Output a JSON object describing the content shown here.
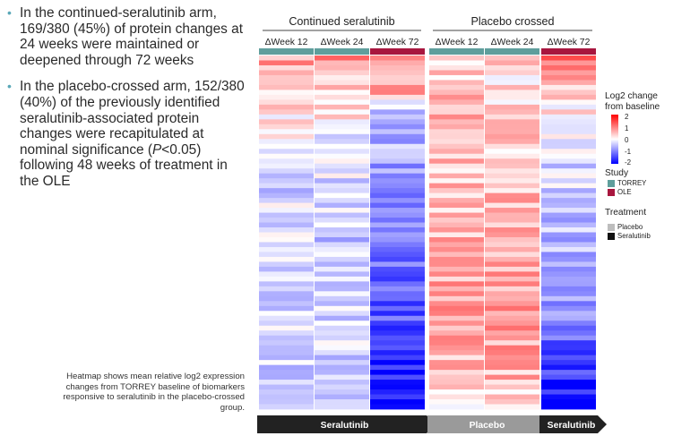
{
  "bullets": [
    {
      "pre": "In the continued-seralutinib arm, 169/380 (45%) of protein changes at 24 weeks were maintained or deepened through 72 weeks",
      "p": "",
      "post": ""
    },
    {
      "pre": "In the placebo-crossed arm, 152/380 (40%) of the previously identified seralutinib-associated protein changes were recapitulated at nominal significance (",
      "p": "P",
      "post": "<0.05) following 48 weeks of treatment in the OLE"
    }
  ],
  "note": "Heatmap shows mean relative log2 expression changes from TORREY baseline of biomarkers responsive to seralutinib in the placebo-crossed group.",
  "legend": {
    "scale_title": "Log2 change from baseline",
    "scale_ticks": [
      "2",
      "1",
      "0",
      "-1",
      "-2"
    ],
    "study_title": "Study",
    "study_items": [
      {
        "label": "TORREY",
        "color": "#5f9e9c"
      },
      {
        "label": "OLE",
        "color": "#a8163e"
      }
    ],
    "treatment_title": "Treatment",
    "treatment_items": [
      {
        "label": "Placebo",
        "color": "#bdbdbd"
      },
      {
        "label": "Seralutinib",
        "color": "#111111"
      }
    ]
  },
  "chart_data": {
    "type": "heatmap",
    "value_range": [
      -2,
      2
    ],
    "groups": [
      {
        "label": "Continued seralutinib",
        "columns": [
          0,
          1,
          2
        ]
      },
      {
        "label": "Placebo crossed",
        "columns": [
          3,
          4,
          5
        ]
      }
    ],
    "columns": [
      {
        "label": "ΔWeek 12",
        "study": "TORREY"
      },
      {
        "label": "ΔWeek 24",
        "study": "TORREY"
      },
      {
        "label": "ΔWeek 72",
        "study": "OLE"
      },
      {
        "label": "ΔWeek 12",
        "study": "TORREY"
      },
      {
        "label": "ΔWeek 24",
        "study": "TORREY"
      },
      {
        "label": "ΔWeek 72",
        "study": "OLE"
      }
    ],
    "treatment_bar": [
      {
        "label": "Seralutinib",
        "columns": [
          0,
          1,
          2
        ],
        "color": "#222222"
      },
      {
        "label": "Placebo",
        "columns": [
          3,
          4
        ],
        "color": "#9a9a9a"
      },
      {
        "label": "Seralutinib",
        "columns": [
          5
        ],
        "color": "#222222"
      }
    ],
    "row_count": 72,
    "profiles": [
      [
        [
          0,
          0.8
        ],
        [
          0.12,
          0.25
        ],
        [
          0.3,
          -0.25
        ],
        [
          0.55,
          -0.35
        ],
        [
          0.85,
          -0.25
        ],
        [
          1,
          -0.35
        ]
      ],
      [
        [
          0,
          0.8
        ],
        [
          0.12,
          0.3
        ],
        [
          0.3,
          -0.25
        ],
        [
          0.55,
          -0.45
        ],
        [
          0.85,
          -0.3
        ],
        [
          1,
          -0.4
        ]
      ],
      [
        [
          0,
          1.1
        ],
        [
          0.1,
          0.6
        ],
        [
          0.15,
          -0.5
        ],
        [
          0.45,
          -0.9
        ],
        [
          0.75,
          -1.3
        ],
        [
          0.9,
          -1.8
        ],
        [
          1,
          -2.0
        ]
      ],
      [
        [
          0,
          0.3
        ],
        [
          0.15,
          0.5
        ],
        [
          0.45,
          0.5
        ],
        [
          0.7,
          0.7
        ],
        [
          0.9,
          0.5
        ],
        [
          1,
          0.2
        ]
      ],
      [
        [
          0,
          0.3
        ],
        [
          0.2,
          0.3
        ],
        [
          0.45,
          0.6
        ],
        [
          0.7,
          0.8
        ],
        [
          0.9,
          0.6
        ],
        [
          1,
          0.3
        ]
      ],
      [
        [
          0,
          1.1
        ],
        [
          0.12,
          0.4
        ],
        [
          0.2,
          -0.2
        ],
        [
          0.5,
          -0.5
        ],
        [
          0.75,
          -0.9
        ],
        [
          0.88,
          -1.5
        ],
        [
          1,
          -2.0
        ]
      ]
    ]
  }
}
